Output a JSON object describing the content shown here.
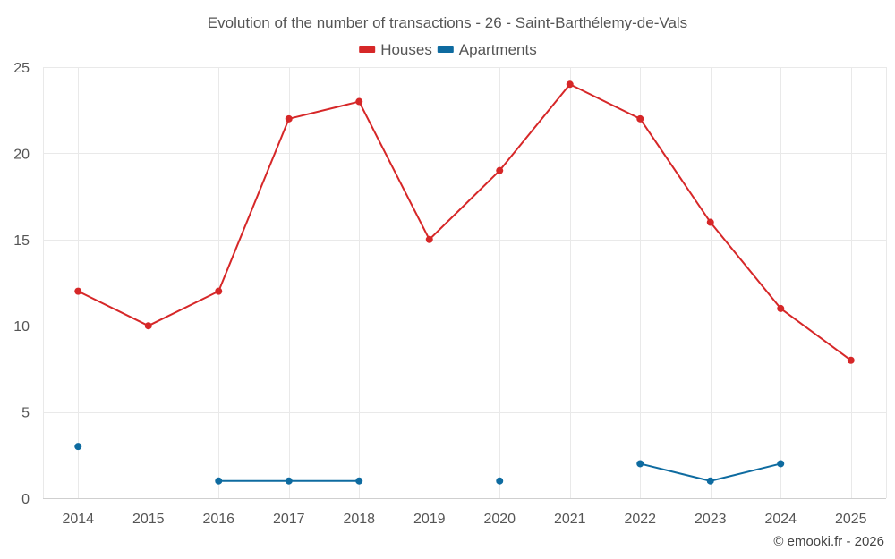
{
  "chart_data": {
    "type": "line",
    "title": "Evolution of the number of transactions - 26 - Saint-Barthélemy-de-Vals",
    "categories": [
      "2014",
      "2015",
      "2016",
      "2017",
      "2018",
      "2019",
      "2020",
      "2021",
      "2022",
      "2023",
      "2024",
      "2025"
    ],
    "ylim": [
      0,
      25
    ],
    "yticks": [
      0,
      5,
      10,
      15,
      20,
      25
    ],
    "grid": true,
    "legend_position": "top-center",
    "series": [
      {
        "name": "Houses",
        "color": "#d62728",
        "values": [
          12,
          10,
          12,
          22,
          23,
          15,
          19,
          24,
          22,
          16,
          11,
          8
        ]
      },
      {
        "name": "Apartments",
        "color": "#0e6ba0",
        "values": [
          3,
          null,
          1,
          1,
          1,
          null,
          1,
          null,
          2,
          1,
          2,
          null
        ]
      }
    ],
    "credit": "© emooki.fr - 2026"
  }
}
